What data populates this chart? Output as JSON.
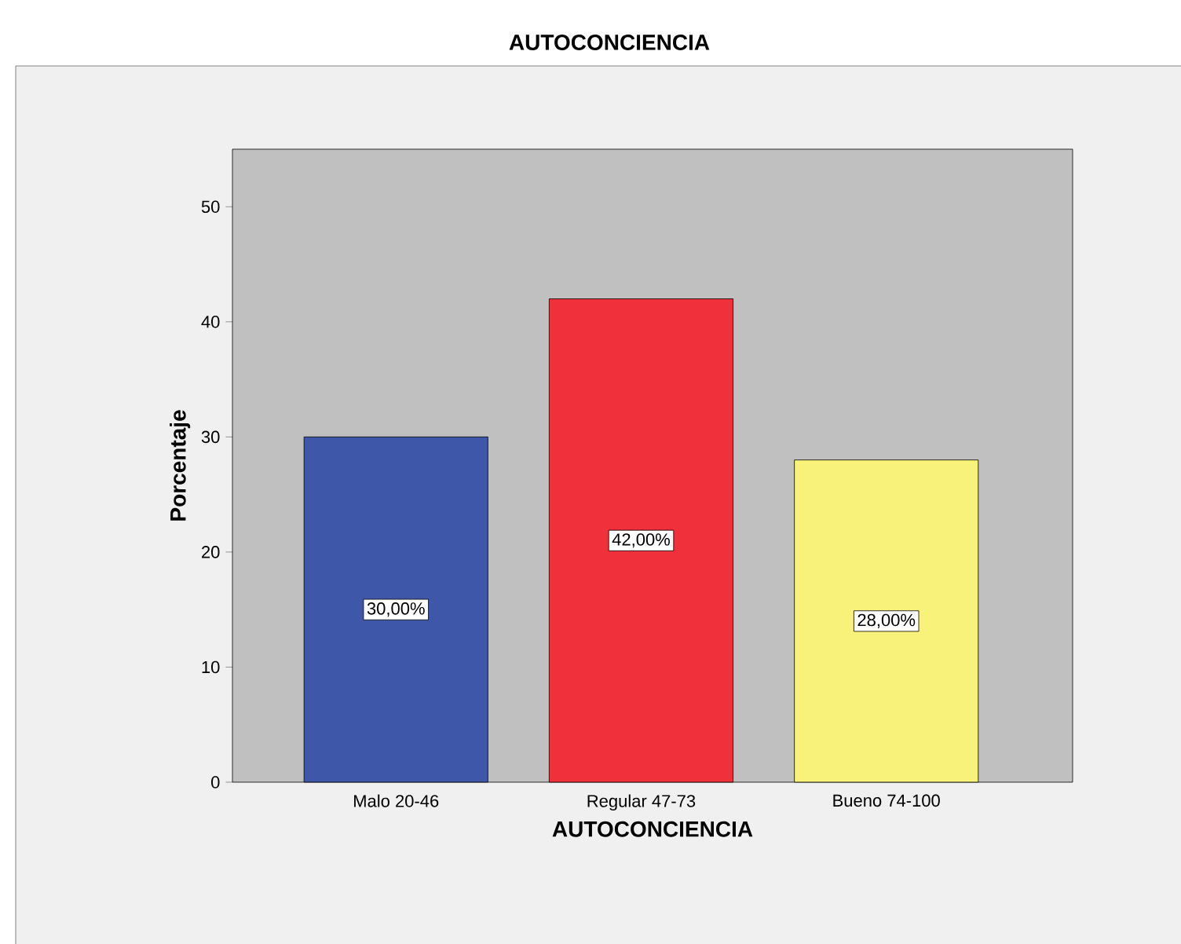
{
  "chart_data": {
    "type": "bar",
    "title": "AUTOCONCIENCIA",
    "xlabel": "AUTOCONCIENCIA",
    "ylabel": "Porcentaje",
    "categories": [
      "Malo 20-46",
      "Regular 47-73",
      "Bueno 74-100"
    ],
    "values": [
      30,
      42,
      28
    ],
    "colors": [
      "#3f57a8",
      "#f0303a",
      "#f8f27a"
    ],
    "value_labels": [
      "30,00%",
      "42,00%",
      "28,00%"
    ],
    "ylim": [
      0,
      55
    ],
    "yticks": [
      0,
      10,
      20,
      30,
      40,
      50
    ]
  }
}
